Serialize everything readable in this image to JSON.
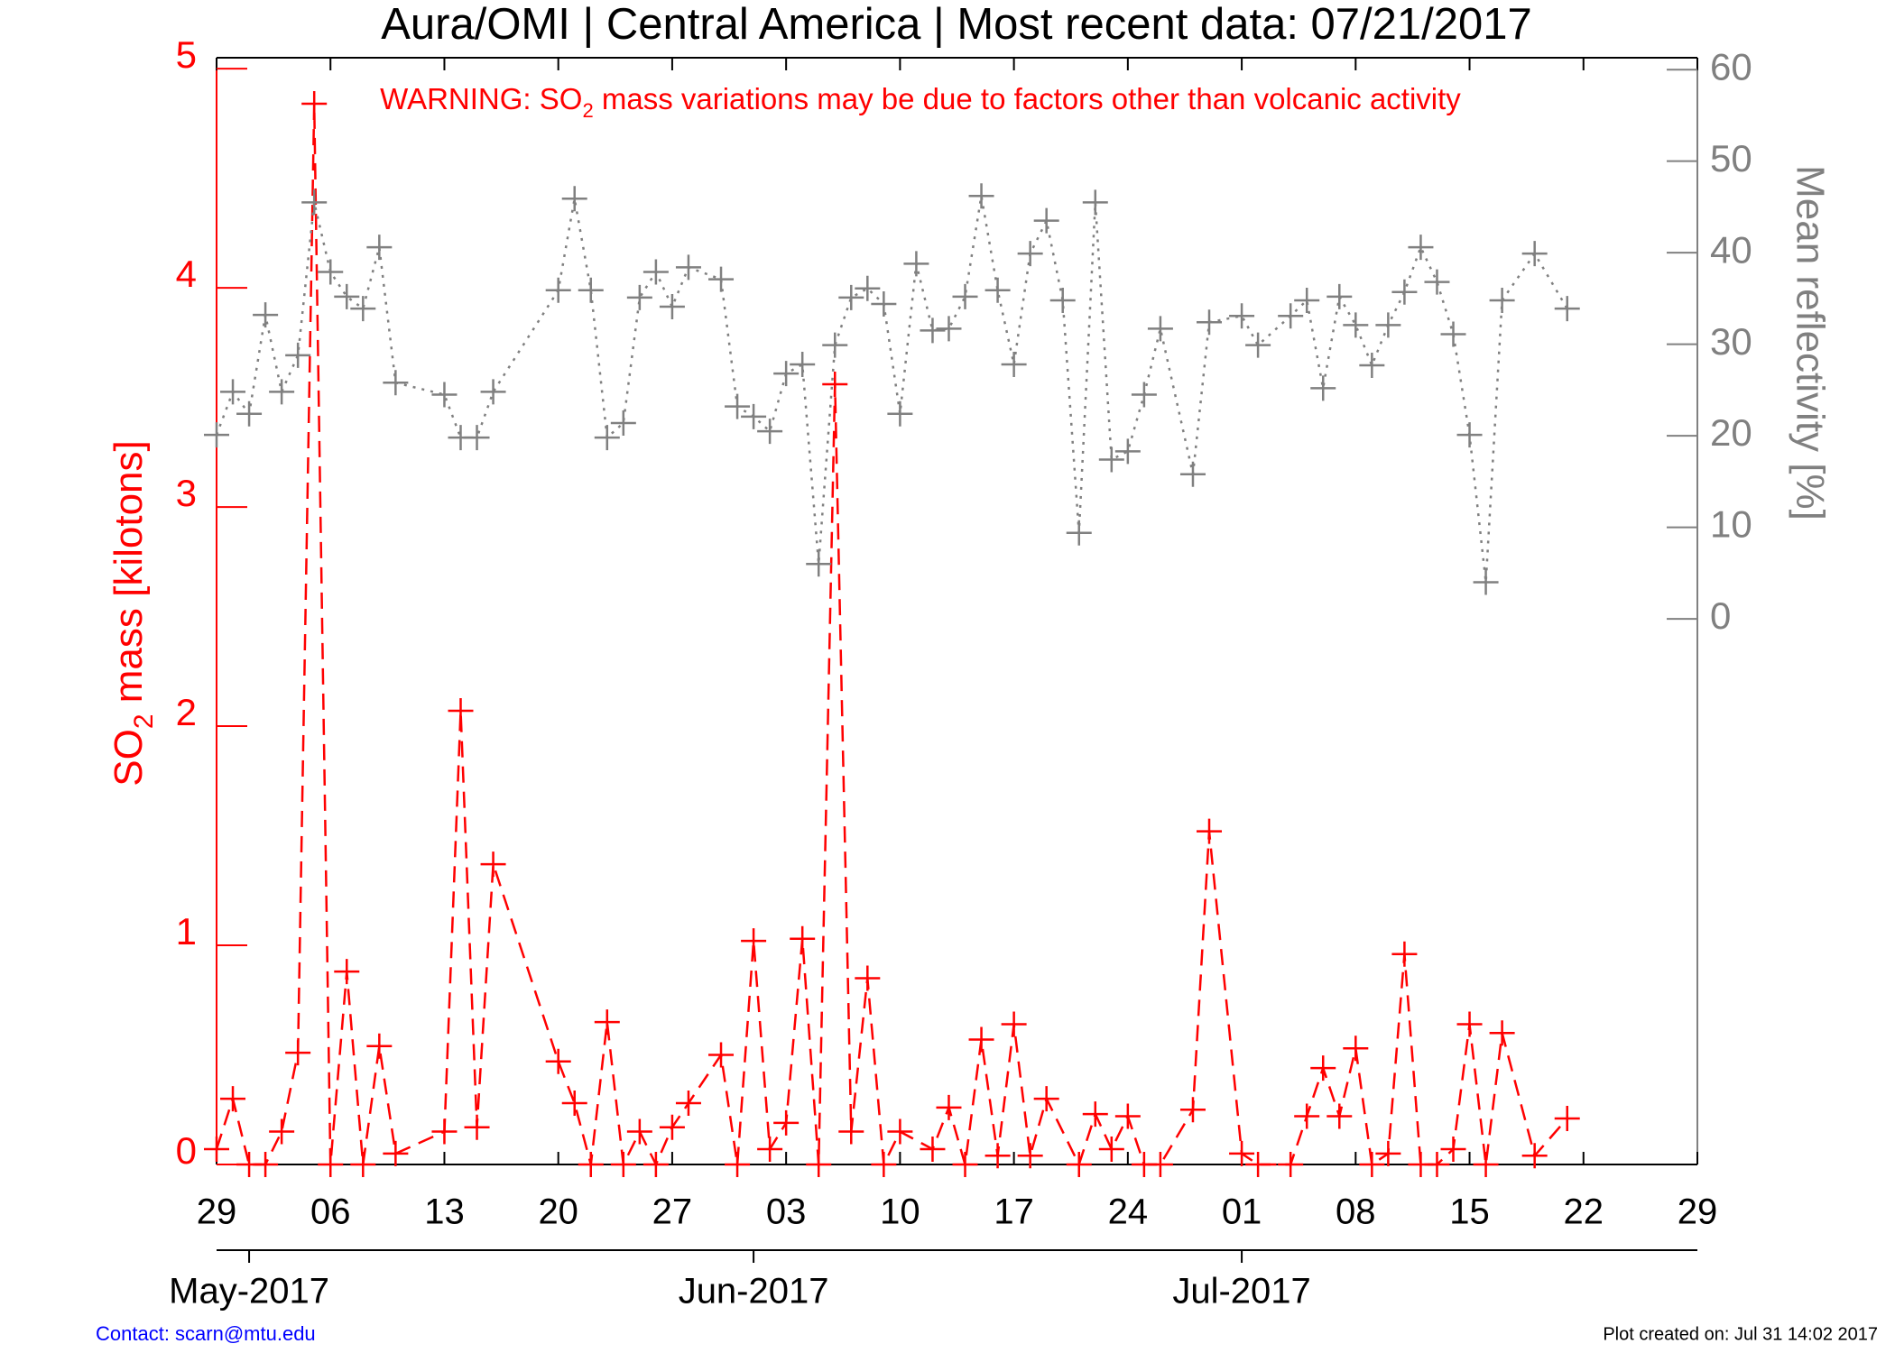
{
  "chart_data": {
    "type": "line",
    "title": "Aura/OMI | Central America | Most recent data: 07/21/2017",
    "annotation": {
      "text": "WARNING: SO",
      "sub": "2",
      "rest": " mass variations may be due to factors other than volcanic activity",
      "color": "#ff0000"
    },
    "ylabel": {
      "text": "SO",
      "sub": "2",
      "rest": " mass [kilotons]",
      "color": "#ff0000"
    },
    "y2label": {
      "text": "Mean reflectivity [%]",
      "color": "#808080"
    },
    "xlim": [
      "2017-04-29",
      "2017-07-29"
    ],
    "xticks": [
      {
        "value": "2017-04-29",
        "label": "29"
      },
      {
        "value": "2017-05-06",
        "label": "06"
      },
      {
        "value": "2017-05-13",
        "label": "13"
      },
      {
        "value": "2017-05-20",
        "label": "20"
      },
      {
        "value": "2017-05-27",
        "label": "27"
      },
      {
        "value": "2017-06-03",
        "label": "03"
      },
      {
        "value": "2017-06-10",
        "label": "10"
      },
      {
        "value": "2017-06-17",
        "label": "17"
      },
      {
        "value": "2017-06-24",
        "label": "24"
      },
      {
        "value": "2017-07-01",
        "label": "01"
      },
      {
        "value": "2017-07-08",
        "label": "08"
      },
      {
        "value": "2017-07-15",
        "label": "15"
      },
      {
        "value": "2017-07-22",
        "label": "22"
      },
      {
        "value": "2017-07-29",
        "label": "29"
      }
    ],
    "month_ticks": [
      {
        "value": "2017-05-01",
        "label": "May-2017"
      },
      {
        "value": "2017-06-01",
        "label": "Jun-2017"
      },
      {
        "value": "2017-07-01",
        "label": "Jul-2017"
      }
    ],
    "ylim": [
      0,
      5.05
    ],
    "yticks": [
      0,
      1,
      2,
      3,
      4,
      5
    ],
    "y2lim": [
      -59.6,
      61.3
    ],
    "y2ticks": [
      0,
      10,
      20,
      30,
      40,
      50,
      60
    ],
    "series": [
      {
        "color": "#ff0000",
        "line_style": "dashed",
        "marker": "plus",
        "axis": "y",
        "x": [
          "2017-04-29",
          "2017-04-30",
          "2017-05-01",
          "2017-05-02",
          "2017-05-03",
          "2017-05-04",
          "2017-05-05",
          "2017-05-06",
          "2017-05-07",
          "2017-05-08",
          "2017-05-09",
          "2017-05-10",
          "2017-05-13",
          "2017-05-14",
          "2017-05-15",
          "2017-05-16",
          "2017-05-20",
          "2017-05-21",
          "2017-05-22",
          "2017-05-23",
          "2017-05-24",
          "2017-05-25",
          "2017-05-26",
          "2017-05-27",
          "2017-05-28",
          "2017-05-30",
          "2017-05-31",
          "2017-06-01",
          "2017-06-02",
          "2017-06-03",
          "2017-06-04",
          "2017-06-05",
          "2017-06-06",
          "2017-06-07",
          "2017-06-08",
          "2017-06-09",
          "2017-06-10",
          "2017-06-12",
          "2017-06-13",
          "2017-06-14",
          "2017-06-15",
          "2017-06-16",
          "2017-06-17",
          "2017-06-18",
          "2017-06-19",
          "2017-06-21",
          "2017-06-22",
          "2017-06-23",
          "2017-06-24",
          "2017-06-25",
          "2017-06-26",
          "2017-06-28",
          "2017-06-29",
          "2017-07-01",
          "2017-07-02",
          "2017-07-04",
          "2017-07-05",
          "2017-07-06",
          "2017-07-07",
          "2017-07-08",
          "2017-07-09",
          "2017-07-10",
          "2017-07-11",
          "2017-07-12",
          "2017-07-13",
          "2017-07-14",
          "2017-07-15",
          "2017-07-16",
          "2017-07-17",
          "2017-07-19",
          "2017-07-21"
        ],
        "values": [
          0.07,
          0.3,
          0,
          0,
          0.15,
          0.51,
          4.84,
          0,
          0.88,
          0,
          0.54,
          0.05,
          0.15,
          2.07,
          0.17,
          1.37,
          0.47,
          0.28,
          0,
          0.65,
          0,
          0.15,
          0,
          0.17,
          0.28,
          0.5,
          0,
          1.02,
          0.07,
          0.19,
          1.03,
          0,
          3.56,
          0.15,
          0.85,
          0,
          0.15,
          0.07,
          0.26,
          0,
          0.57,
          0.04,
          0.64,
          0.04,
          0.3,
          0,
          0.23,
          0.07,
          0.22,
          0,
          0,
          0.25,
          1.52,
          0.05,
          0,
          0,
          0.22,
          0.44,
          0.22,
          0.53,
          0,
          0.05,
          0.96,
          0,
          0,
          0.07,
          0.64,
          0,
          0.6,
          0.04,
          0.21
        ]
      },
      {
        "color": "#808080",
        "line_style": "dotted",
        "marker": "plus",
        "axis": "y2",
        "x": [
          "2017-04-29",
          "2017-04-30",
          "2017-05-01",
          "2017-05-02",
          "2017-05-03",
          "2017-05-04",
          "2017-05-05",
          "2017-05-06",
          "2017-05-07",
          "2017-05-08",
          "2017-05-09",
          "2017-05-10",
          "2017-05-13",
          "2017-05-14",
          "2017-05-15",
          "2017-05-16",
          "2017-05-20",
          "2017-05-21",
          "2017-05-22",
          "2017-05-23",
          "2017-05-24",
          "2017-05-25",
          "2017-05-26",
          "2017-05-27",
          "2017-05-28",
          "2017-05-30",
          "2017-05-31",
          "2017-06-01",
          "2017-06-02",
          "2017-06-03",
          "2017-06-04",
          "2017-06-05",
          "2017-06-06",
          "2017-06-07",
          "2017-06-08",
          "2017-06-09",
          "2017-06-10",
          "2017-06-11",
          "2017-06-12",
          "2017-06-13",
          "2017-06-14",
          "2017-06-15",
          "2017-06-16",
          "2017-06-17",
          "2017-06-18",
          "2017-06-19",
          "2017-06-20",
          "2017-06-21",
          "2017-06-22",
          "2017-06-23",
          "2017-06-24",
          "2017-06-25",
          "2017-06-26",
          "2017-06-28",
          "2017-06-29",
          "2017-07-01",
          "2017-07-02",
          "2017-07-04",
          "2017-07-05",
          "2017-07-06",
          "2017-07-07",
          "2017-07-08",
          "2017-07-09",
          "2017-07-10",
          "2017-07-11",
          "2017-07-12",
          "2017-07-13",
          "2017-07-14",
          "2017-07-15",
          "2017-07-16",
          "2017-07-17",
          "2017-07-19",
          "2017-07-21"
        ],
        "values": [
          20.1,
          24.8,
          22.4,
          33.2,
          24.8,
          28.8,
          45.5,
          37.9,
          35.2,
          33.9,
          40.6,
          25.8,
          24.5,
          19.8,
          19.8,
          24.8,
          35.9,
          45.9,
          35.9,
          19.8,
          21.4,
          35.1,
          37.9,
          34.1,
          38.4,
          37.1,
          23.2,
          22.1,
          20.5,
          26.8,
          27.8,
          6.0,
          29.9,
          35.1,
          36.1,
          34.4,
          22.4,
          38.8,
          31.5,
          31.7,
          35.2,
          46.2,
          35.9,
          27.8,
          39.9,
          43.5,
          34.8,
          9.4,
          45.5,
          17.4,
          18.3,
          24.5,
          31.7,
          15.8,
          32.4,
          33.1,
          29.9,
          33.1,
          34.8,
          25.2,
          35.2,
          32.1,
          27.7,
          32.1,
          35.7,
          40.6,
          36.8,
          31.1,
          20.1,
          4.0,
          34.8,
          39.9,
          33.9
        ]
      }
    ]
  },
  "footer": {
    "contact": "Contact: scarn@mtu.edu",
    "created": "Plot created on: Jul 31 14:02 2017"
  }
}
